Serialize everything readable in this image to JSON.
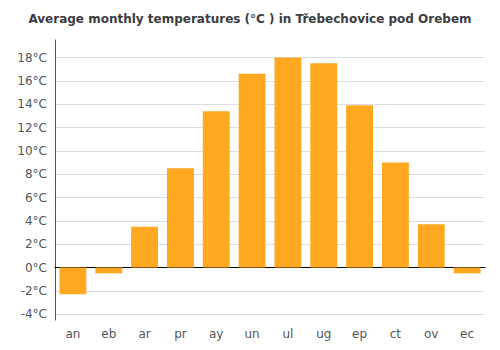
{
  "chart_data": {
    "type": "bar",
    "title": "Average monthly temperatures (°C ) in Třebechovice pod Orebem",
    "categories": [
      "an",
      "eb",
      "ar",
      "pr",
      "ay",
      "un",
      "ul",
      "ug",
      "ep",
      "ct",
      "ov",
      "ec"
    ],
    "values": [
      -2.3,
      -0.5,
      3.5,
      8.5,
      13.4,
      16.6,
      18.0,
      17.5,
      13.9,
      9.0,
      3.7,
      -0.5
    ],
    "color": "#FFA820",
    "ylim": [
      -4.5,
      19.5
    ],
    "yticks": [
      {
        "value": -4,
        "label": "-4°C"
      },
      {
        "value": -2,
        "label": "-2°C"
      },
      {
        "value": 0,
        "label": "0°C"
      },
      {
        "value": 2,
        "label": "2°C"
      },
      {
        "value": 4,
        "label": "4°C"
      },
      {
        "value": 6,
        "label": "6°C"
      },
      {
        "value": 8,
        "label": "8°C"
      },
      {
        "value": 10,
        "label": "10°C"
      },
      {
        "value": 12,
        "label": "12°C"
      },
      {
        "value": 14,
        "label": "14°C"
      },
      {
        "value": 16,
        "label": "16°C"
      },
      {
        "value": 18,
        "label": "18°C"
      }
    ],
    "grid": true
  }
}
